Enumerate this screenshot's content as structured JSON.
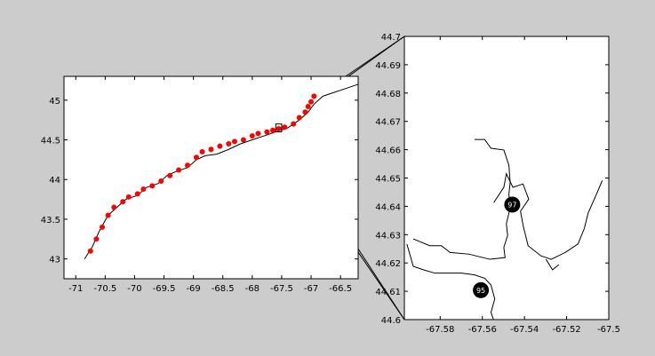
{
  "window": {
    "background": "#cccccc"
  },
  "colors": {
    "coastline": "#000000",
    "highlight": "#ff0000",
    "marker": "#000000",
    "marker_text": "#ffffff"
  },
  "chart_data": [
    {
      "type": "scatter",
      "panel": "overview",
      "title": "",
      "xlabel": "",
      "ylabel": "",
      "xlim": [
        -71.2,
        -66.2
      ],
      "ylim": [
        42.75,
        45.3
      ],
      "xticks": [
        -71,
        -70.5,
        -70,
        -69.5,
        -69,
        -68.5,
        -68,
        -67.5,
        -67,
        -66.5
      ],
      "yticks": [
        43,
        43.5,
        44,
        44.5,
        45
      ],
      "xtick_labels": [
        "-71",
        "-70.5",
        "-70",
        "-69.5",
        "-69",
        "-68.5",
        "-68",
        "-67.5",
        "-67",
        "-66.5"
      ],
      "ytick_labels": [
        "43",
        "43.5",
        "44",
        "44.5",
        "45"
      ],
      "grid": false,
      "coastline": [
        [
          -70.85,
          43.0
        ],
        [
          -70.72,
          43.15
        ],
        [
          -70.6,
          43.35
        ],
        [
          -70.45,
          43.55
        ],
        [
          -70.3,
          43.65
        ],
        [
          -70.15,
          43.75
        ],
        [
          -69.95,
          43.8
        ],
        [
          -69.8,
          43.9
        ],
        [
          -69.6,
          43.95
        ],
        [
          -69.45,
          44.05
        ],
        [
          -69.3,
          44.1
        ],
        [
          -69.1,
          44.15
        ],
        [
          -68.95,
          44.25
        ],
        [
          -68.8,
          44.3
        ],
        [
          -68.6,
          44.32
        ],
        [
          -68.4,
          44.38
        ],
        [
          -68.2,
          44.45
        ],
        [
          -68.0,
          44.5
        ],
        [
          -67.8,
          44.55
        ],
        [
          -67.6,
          44.6
        ],
        [
          -67.4,
          44.65
        ],
        [
          -67.2,
          44.75
        ],
        [
          -67.05,
          44.85
        ],
        [
          -66.95,
          44.95
        ],
        [
          -66.8,
          45.05
        ],
        [
          -66.6,
          45.1
        ],
        [
          -66.4,
          45.15
        ],
        [
          -66.2,
          45.2
        ]
      ],
      "highlight_points": [
        [
          -70.75,
          43.1
        ],
        [
          -70.65,
          43.25
        ],
        [
          -70.55,
          43.4
        ],
        [
          -70.45,
          43.55
        ],
        [
          -70.35,
          43.65
        ],
        [
          -70.2,
          43.72
        ],
        [
          -70.1,
          43.78
        ],
        [
          -69.95,
          43.82
        ],
        [
          -69.85,
          43.88
        ],
        [
          -69.7,
          43.92
        ],
        [
          -69.55,
          43.98
        ],
        [
          -69.4,
          44.05
        ],
        [
          -69.25,
          44.12
        ],
        [
          -69.1,
          44.18
        ],
        [
          -68.95,
          44.28
        ],
        [
          -68.85,
          44.35
        ],
        [
          -68.7,
          44.38
        ],
        [
          -68.55,
          44.42
        ],
        [
          -68.4,
          44.45
        ],
        [
          -68.3,
          44.48
        ],
        [
          -68.15,
          44.5
        ],
        [
          -68.0,
          44.55
        ],
        [
          -67.9,
          44.58
        ],
        [
          -67.75,
          44.6
        ],
        [
          -67.65,
          44.62
        ],
        [
          -67.55,
          44.64
        ],
        [
          -67.45,
          44.66
        ],
        [
          -67.3,
          44.7
        ],
        [
          -67.2,
          44.78
        ],
        [
          -67.1,
          44.85
        ],
        [
          -67.05,
          44.92
        ],
        [
          -67.0,
          44.98
        ],
        [
          -66.95,
          45.05
        ]
      ],
      "inset_box": {
        "xlim": [
          -67.6,
          -67.5
        ],
        "ylim": [
          44.6,
          44.7
        ]
      }
    },
    {
      "type": "line",
      "panel": "zoom",
      "title": "",
      "xlabel": "",
      "ylabel": "",
      "xlim": [
        -67.597,
        -67.5
      ],
      "ylim": [
        44.6,
        44.7
      ],
      "xticks": [
        -67.58,
        -67.56,
        -67.54,
        -67.52,
        -67.5
      ],
      "yticks": [
        44.6,
        44.61,
        44.62,
        44.63,
        44.64,
        44.65,
        44.66,
        44.67,
        44.68,
        44.69,
        44.7
      ],
      "xtick_labels": [
        "-67.58",
        "-67.56",
        "-67.54",
        "-67.52",
        "-67.5"
      ],
      "ytick_labels": [
        "44.6",
        "44.61",
        "44.62",
        "44.63",
        "44.64",
        "44.65",
        "44.66",
        "44.67",
        "44.68",
        "44.69",
        "44.7"
      ],
      "grid": false,
      "lines": [
        [
          [
            -67.5637,
            44.6636
          ],
          [
            -67.5589,
            44.6636
          ],
          [
            -67.5559,
            44.6605
          ],
          [
            -67.5498,
            44.6599
          ],
          [
            -67.5474,
            44.6545
          ],
          [
            -67.5468,
            44.6485
          ],
          [
            -67.5474,
            44.6442
          ],
          [
            -67.5468,
            44.6394
          ],
          [
            -67.5486,
            44.6339
          ],
          [
            -67.548,
            44.6297
          ],
          [
            -67.5498,
            44.6255
          ],
          [
            -67.5492,
            44.6219
          ],
          [
            -67.5565,
            44.6213
          ],
          [
            -67.5662,
            44.6231
          ],
          [
            -67.5753,
            44.6237
          ],
          [
            -67.5795,
            44.6261
          ],
          [
            -67.585,
            44.6261
          ],
          [
            -67.5928,
            44.6285
          ]
        ],
        [
          [
            -67.5958,
            44.6267
          ],
          [
            -67.5928,
            44.6188
          ],
          [
            -67.588,
            44.6176
          ],
          [
            -67.5825,
            44.6164
          ],
          [
            -67.5759,
            44.6164
          ],
          [
            -67.5698,
            44.6164
          ],
          [
            -67.5637,
            44.6158
          ],
          [
            -67.5589,
            44.6146
          ],
          [
            -67.5559,
            44.6122
          ],
          [
            -67.5541,
            44.6073
          ],
          [
            -67.5559,
            44.6025
          ],
          [
            -67.5547,
            44.6
          ]
        ],
        [
          [
            -67.5546,
            44.6413
          ],
          [
            -67.5498,
            44.6467
          ],
          [
            -67.5486,
            44.6515
          ],
          [
            -67.5455,
            44.6467
          ],
          [
            -67.5407,
            44.6479
          ],
          [
            -67.538,
            44.6425
          ],
          [
            -67.5419,
            44.6383
          ],
          [
            -67.5407,
            44.6334
          ],
          [
            -67.5383,
            44.6261
          ],
          [
            -67.5322,
            44.6225
          ],
          [
            -67.5273,
            44.6213
          ],
          [
            -67.5207,
            44.6237
          ],
          [
            -67.5146,
            44.6267
          ],
          [
            -67.5116,
            44.6322
          ],
          [
            -67.5098,
            44.6376
          ],
          [
            -67.5055,
            44.6449
          ],
          [
            -67.5031,
            44.6491
          ]
        ],
        [
          [
            -67.5298,
            44.6213
          ],
          [
            -67.5267,
            44.6176
          ],
          [
            -67.5237,
            44.6194
          ]
        ]
      ],
      "markers": [
        {
          "label": "97",
          "x": -67.5458,
          "y": 44.6406
        },
        {
          "label": "95",
          "x": -67.5607,
          "y": 44.6104
        }
      ]
    }
  ]
}
